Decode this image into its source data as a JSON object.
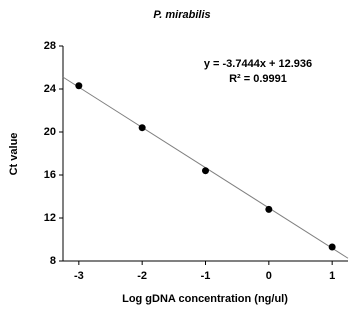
{
  "chart_data": {
    "type": "scatter",
    "title": "P. mirabilis",
    "x_label": "Log gDNA concentration (ng/ul)",
    "y_label": "Ct value",
    "x": [
      -3,
      -2,
      -1,
      0,
      1
    ],
    "values": [
      24.3,
      20.4,
      16.4,
      12.8,
      9.3
    ],
    "color": "#000000",
    "xlim": [
      -3.25,
      1.25
    ],
    "xticks": [
      -3,
      -2,
      -1,
      0,
      1
    ],
    "ylim": [
      8,
      28
    ],
    "yticks": [
      8,
      12,
      16,
      20,
      24,
      28
    ],
    "trendline": {
      "slope": -3.7444,
      "intercept": 12.936,
      "color": "#808080"
    },
    "annotations": [
      "y = -3.7444x + 12.936",
      "R² = 0.9991"
    ]
  }
}
